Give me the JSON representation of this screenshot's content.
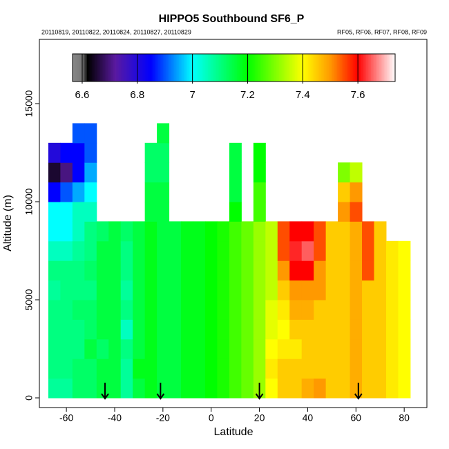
{
  "chart_data": {
    "type": "heatmap",
    "title": "HIPPO5 Southbound SF6_P",
    "subtitle_left": "20110819, 20110822, 20110824, 20110827, 20110829",
    "subtitle_right": "RF05, RF06, RF07, RF08, RF09",
    "x_label": "Latitude",
    "y_label": "Altitude (m)",
    "xlim": [
      -71.2,
      89.4
    ],
    "ylim": [
      -493,
      18275
    ],
    "xticks": [
      -60,
      -40,
      -20,
      0,
      20,
      40,
      60,
      80
    ],
    "yticks": [
      0,
      5000,
      10000,
      15000
    ],
    "x": [
      -65,
      -60,
      -55,
      -50,
      -45,
      -40,
      -35,
      -30,
      -25,
      -20,
      -15,
      -10,
      -5,
      0,
      5,
      10,
      15,
      20,
      25,
      30,
      35,
      40,
      45,
      50,
      55,
      60,
      65,
      70,
      75,
      80
    ],
    "y": [
      500,
      1500,
      2500,
      3500,
      4500,
      5500,
      6500,
      7500,
      8500,
      9500,
      10500,
      11500,
      12500,
      13500
    ],
    "z": [
      [
        7.08,
        7.1,
        7.1,
        7.1,
        7.1,
        7.08,
        7.1,
        7.05,
        7.0,
        7.0,
        6.85,
        6.65,
        6.8
      ],
      [
        7.08,
        7.1,
        7.1,
        7.1,
        7.1,
        7.1,
        7.1,
        7.05,
        7.0,
        7.0,
        6.9,
        6.7,
        6.85
      ],
      [
        7.12,
        7.12,
        7.1,
        7.1,
        7.12,
        7.1,
        7.1,
        7.08,
        7.05,
        7.05,
        6.95,
        6.85,
        6.85,
        6.9
      ],
      [
        7.12,
        7.12,
        7.15,
        7.12,
        7.12,
        7.1,
        7.12,
        7.1,
        7.1,
        7.05,
        7.0,
        6.95,
        6.9,
        6.9
      ],
      [
        7.15,
        7.15,
        7.12,
        7.15,
        7.15,
        7.15,
        7.15,
        7.15,
        7.12
      ],
      [
        7.15,
        7.15,
        7.15,
        7.15,
        7.15,
        7.15,
        7.15,
        7.15,
        7.15
      ],
      [
        7.08,
        7.08,
        7.1,
        7.05,
        7.1,
        7.08,
        7.1,
        7.1,
        7.12
      ],
      [
        7.15,
        7.18,
        7.15,
        7.15,
        7.15,
        7.15,
        7.15,
        7.15,
        7.15
      ],
      [
        7.18,
        7.18,
        7.18,
        7.18,
        7.18,
        7.18,
        7.18,
        7.18,
        7.18,
        7.15,
        7.15,
        7.12,
        7.12
      ],
      [
        7.15,
        7.15,
        7.15,
        7.15,
        7.15,
        7.15,
        7.15,
        7.15,
        7.15,
        7.15,
        7.15,
        7.12,
        7.12,
        7.15
      ],
      [
        7.15,
        7.15,
        7.15,
        7.15,
        7.15,
        7.15,
        7.15,
        7.15,
        7.15
      ],
      [
        7.18,
        7.18,
        7.18,
        7.18,
        7.18,
        7.18,
        7.18,
        7.18,
        7.18
      ],
      [
        7.18,
        7.18,
        7.18,
        7.18,
        7.18,
        7.18,
        7.18,
        7.18,
        7.18
      ],
      [
        7.2,
        7.2,
        7.2,
        7.2,
        7.2,
        7.2,
        7.2,
        7.2,
        7.2
      ],
      [
        7.22,
        7.22,
        7.22,
        7.22,
        7.22,
        7.22,
        7.22,
        7.22,
        7.22
      ],
      [
        7.25,
        7.25,
        7.25,
        7.25,
        7.25,
        7.25,
        7.25,
        7.25,
        7.25,
        7.2,
        7.15,
        7.15,
        7.15
      ],
      [
        7.28,
        7.28,
        7.28,
        7.28,
        7.28,
        7.28,
        7.28,
        7.28,
        7.28
      ],
      [
        7.32,
        7.32,
        7.32,
        7.32,
        7.32,
        7.32,
        7.32,
        7.32,
        7.32,
        7.25,
        7.25,
        7.2,
        7.2
      ],
      [
        7.4,
        7.42,
        7.4,
        7.38,
        7.38,
        7.35,
        7.35,
        7.35,
        7.35
      ],
      [
        7.45,
        7.45,
        7.42,
        7.4,
        7.42,
        7.45,
        7.5,
        7.55,
        7.55
      ],
      [
        7.45,
        7.45,
        7.42,
        7.45,
        7.48,
        7.5,
        7.6,
        7.62,
        7.6
      ],
      [
        7.48,
        7.45,
        7.45,
        7.45,
        7.48,
        7.5,
        7.6,
        7.65,
        7.6
      ],
      [
        7.5,
        7.45,
        7.45,
        7.45,
        7.45,
        7.5,
        7.5,
        7.55,
        7.55
      ],
      [
        7.45,
        7.45,
        7.45,
        7.45,
        7.45,
        7.45,
        7.45,
        7.45,
        7.45
      ],
      [
        7.45,
        7.45,
        7.45,
        7.45,
        7.45,
        7.45,
        7.45,
        7.45,
        7.45,
        7.5,
        7.45,
        7.3
      ],
      [
        7.48,
        7.48,
        7.48,
        7.48,
        7.48,
        7.48,
        7.48,
        7.48,
        7.48,
        7.55,
        7.5,
        7.35
      ],
      [
        7.45,
        7.45,
        7.45,
        7.45,
        7.45,
        7.45,
        7.55,
        7.55,
        7.55
      ],
      [
        7.45,
        7.45,
        7.45,
        7.45,
        7.45,
        7.45,
        7.45,
        7.45,
        7.45
      ],
      [
        7.42,
        7.42,
        7.42,
        7.42,
        7.42,
        7.42,
        7.42,
        7.42
      ],
      [
        7.4,
        7.4,
        7.4,
        7.4,
        7.4,
        7.4,
        7.4,
        7.4
      ]
    ],
    "arrows": [
      -44,
      -21,
      20,
      61
    ],
    "colorbar": {
      "lim": [
        6.565,
        7.735
      ],
      "ticks": [
        6.6,
        6.8,
        7.0,
        7.2,
        7.4,
        7.6
      ],
      "stops": [
        [
          6.565,
          "#888888"
        ],
        [
          6.6,
          "#777777"
        ],
        [
          6.62,
          "#000000"
        ],
        [
          6.72,
          "#5a1aa0"
        ],
        [
          6.85,
          "#0000ff"
        ],
        [
          7.0,
          "#00ffff"
        ],
        [
          7.2,
          "#00ff00"
        ],
        [
          7.4,
          "#ffff00"
        ],
        [
          7.5,
          "#ff9900"
        ],
        [
          7.6,
          "#ff0000"
        ],
        [
          7.735,
          "#ffffff"
        ]
      ]
    }
  }
}
